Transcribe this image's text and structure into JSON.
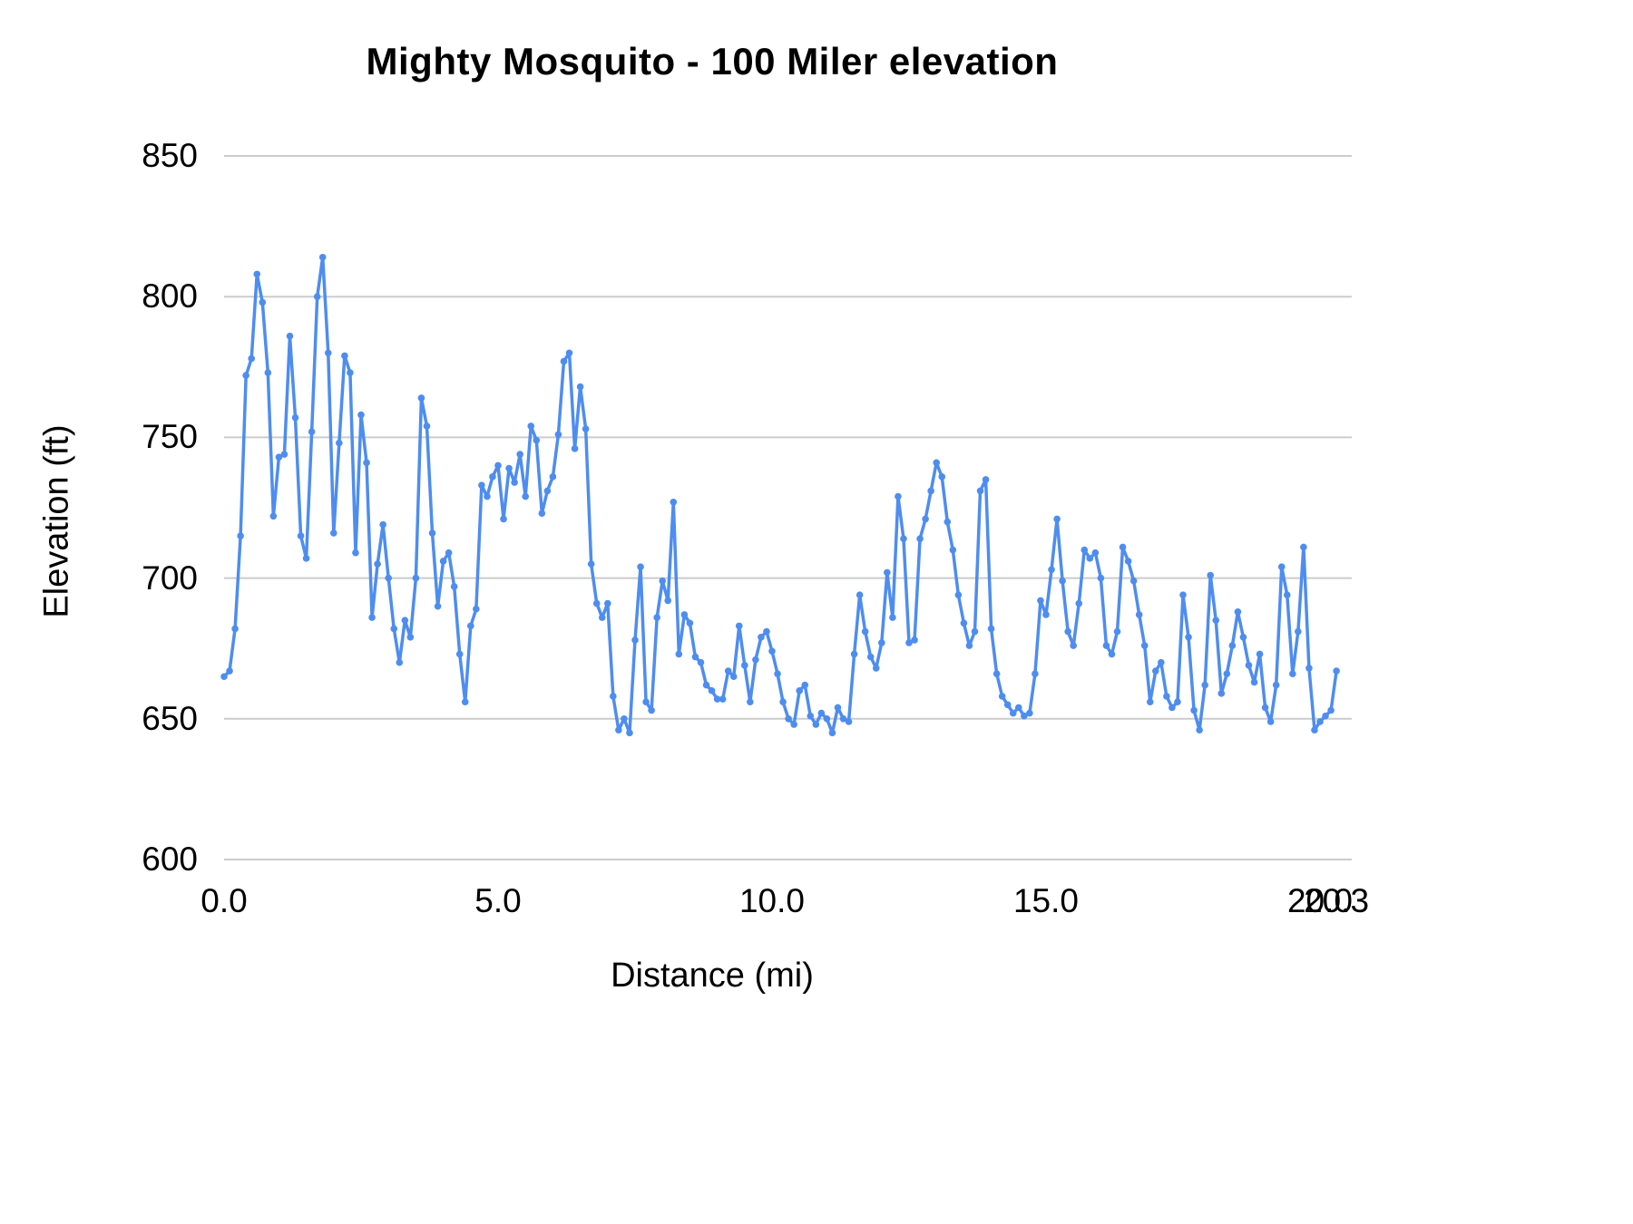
{
  "chart_data": {
    "type": "line",
    "title": "Mighty Mosquito - 100 Miler elevation",
    "xlabel": "Distance (mi)",
    "ylabel": "Elevation (ft)",
    "xlim": [
      0,
      20.3
    ],
    "ylim": [
      600,
      850
    ],
    "grid": "horizontal",
    "legend_position": "none",
    "line_color": "#4e8df0",
    "grid_color": "#cccccc",
    "text_color": "#000000",
    "marker": "circle",
    "x_ticks": {
      "values": [
        0,
        5,
        10,
        15,
        20,
        20.3
      ],
      "labels": [
        "0.0",
        "5.0",
        "10.0",
        "15.0",
        "20.0",
        "20.3"
      ]
    },
    "y_ticks": {
      "values": [
        600,
        650,
        700,
        750,
        800,
        850
      ],
      "labels": [
        "600",
        "650",
        "700",
        "750",
        "800",
        "850"
      ]
    },
    "series": [
      {
        "name": "elevation",
        "x": [
          0,
          0.1,
          0.2,
          0.3,
          0.4,
          0.5,
          0.6,
          0.7,
          0.8,
          0.9,
          1,
          1.1,
          1.2,
          1.3,
          1.4,
          1.5,
          1.6,
          1.7,
          1.8,
          1.9,
          2,
          2.1,
          2.2,
          2.3,
          2.4,
          2.5,
          2.6,
          2.7,
          2.8,
          2.9,
          3,
          3.1,
          3.2,
          3.3,
          3.4,
          3.5,
          3.6,
          3.7,
          3.8,
          3.9,
          4,
          4.1,
          4.2,
          4.3,
          4.4,
          4.5,
          4.6,
          4.7,
          4.8,
          4.9,
          5,
          5.1,
          5.2,
          5.3,
          5.4,
          5.5,
          5.6,
          5.7,
          5.8,
          5.9,
          6,
          6.1,
          6.2,
          6.3,
          6.4,
          6.5,
          6.6,
          6.7,
          6.8,
          6.9,
          7,
          7.1,
          7.2,
          7.3,
          7.4,
          7.5,
          7.6,
          7.7,
          7.8,
          7.9,
          8,
          8.1,
          8.2,
          8.3,
          8.4,
          8.5,
          8.6,
          8.7,
          8.8,
          8.9,
          9,
          9.1,
          9.2,
          9.3,
          9.4,
          9.5,
          9.6,
          9.7,
          9.8,
          9.9,
          10,
          10.1,
          10.2,
          10.3,
          10.4,
          10.5,
          10.6,
          10.7,
          10.8,
          10.9,
          11,
          11.1,
          11.2,
          11.3,
          11.4,
          11.5,
          11.6,
          11.7,
          11.8,
          11.9,
          12,
          12.1,
          12.2,
          12.3,
          12.4,
          12.5,
          12.6,
          12.7,
          12.8,
          12.9,
          13,
          13.1,
          13.2,
          13.3,
          13.4,
          13.5,
          13.6,
          13.7,
          13.8,
          13.9,
          14,
          14.1,
          14.2,
          14.3,
          14.4,
          14.5,
          14.6,
          14.7,
          14.8,
          14.9,
          15,
          15.1,
          15.2,
          15.3,
          15.4,
          15.5,
          15.6,
          15.7,
          15.8,
          15.9,
          16,
          16.1,
          16.2,
          16.3,
          16.4,
          16.5,
          16.6,
          16.7,
          16.8,
          16.9,
          17,
          17.1,
          17.2,
          17.3,
          17.4,
          17.5,
          17.6,
          17.7,
          17.8,
          17.9,
          18,
          18.1,
          18.2,
          18.3,
          18.4,
          18.5,
          18.6,
          18.7,
          18.8,
          18.9,
          19,
          19.1,
          19.2,
          19.3,
          19.4,
          19.5,
          19.6,
          19.7,
          19.8,
          19.9,
          20,
          20.1,
          20.2,
          20.3
        ],
        "y": [
          665,
          667,
          682,
          715,
          772,
          778,
          808,
          798,
          773,
          722,
          743,
          744,
          786,
          757,
          715,
          707,
          752,
          800,
          814,
          780,
          716,
          748,
          779,
          773,
          709,
          758,
          741,
          686,
          705,
          719,
          700,
          682,
          670,
          685,
          679,
          700,
          764,
          754,
          716,
          690,
          706,
          709,
          697,
          673,
          656,
          683,
          689,
          733,
          729,
          736,
          740,
          721,
          739,
          734,
          744,
          729,
          754,
          749,
          723,
          731,
          736,
          751,
          777,
          780,
          746,
          768,
          753,
          705,
          691,
          686,
          691,
          658,
          646,
          650,
          645,
          678,
          704,
          656,
          653,
          686,
          699,
          692,
          727,
          673,
          687,
          684,
          672,
          670,
          662,
          660,
          657,
          657,
          667,
          665,
          683,
          669,
          656,
          671,
          679,
          681,
          674,
          666,
          656,
          650,
          648,
          660,
          662,
          651,
          648,
          652,
          650,
          645,
          654,
          650,
          649,
          673,
          694,
          681,
          672,
          668,
          677,
          702,
          686,
          729,
          714,
          677,
          678,
          714,
          721,
          731,
          741,
          736,
          720,
          710,
          694,
          684,
          676,
          681,
          731,
          735,
          682,
          666,
          658,
          655,
          652,
          654,
          651,
          652,
          666,
          692,
          687,
          703,
          721,
          699,
          681,
          676,
          691,
          710,
          707,
          709,
          700,
          676,
          673,
          681,
          711,
          706,
          699,
          687,
          676,
          656,
          667,
          670,
          658,
          654,
          656,
          694,
          679,
          653,
          646,
          662,
          701,
          685,
          659,
          666,
          676,
          688,
          679,
          669,
          663,
          673,
          654,
          649,
          662,
          704,
          694,
          666,
          681,
          711,
          668,
          646,
          649,
          651,
          653,
          667
        ]
      }
    ]
  }
}
